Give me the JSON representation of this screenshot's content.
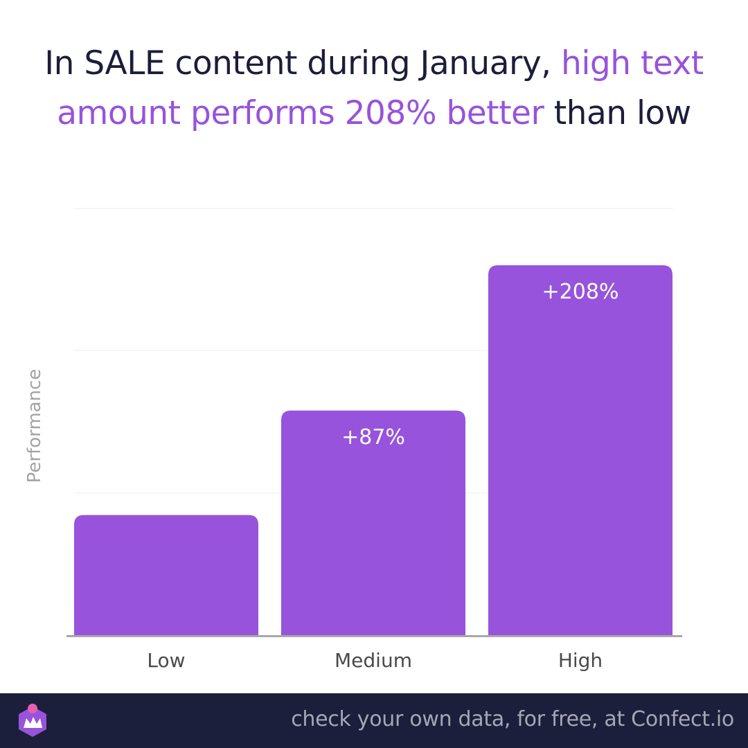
{
  "title": {
    "part1": "In SALE content during January, ",
    "highlight": "high text amount performs 208% better",
    "part2": " than low"
  },
  "colors": {
    "bar": "#9753db",
    "title_highlight": "#9753db",
    "title_text": "#1b1d3a",
    "footer_bg": "#1c1f3b",
    "footer_text": "#a5a7b7",
    "logo_accent": "#e85fb0"
  },
  "chart_data": {
    "type": "bar",
    "categories": [
      "Low",
      "Medium",
      "High"
    ],
    "values": [
      0,
      87,
      208
    ],
    "data_labels": [
      "",
      "+87%",
      "+208%"
    ],
    "ylabel": "Performance",
    "xlabel": "",
    "grid": true,
    "y_axis_ticks_shown": false
  },
  "footer": {
    "text": "check your own data, for free, at Confect.io",
    "logo_icon": "confect-crown-logo-icon"
  }
}
